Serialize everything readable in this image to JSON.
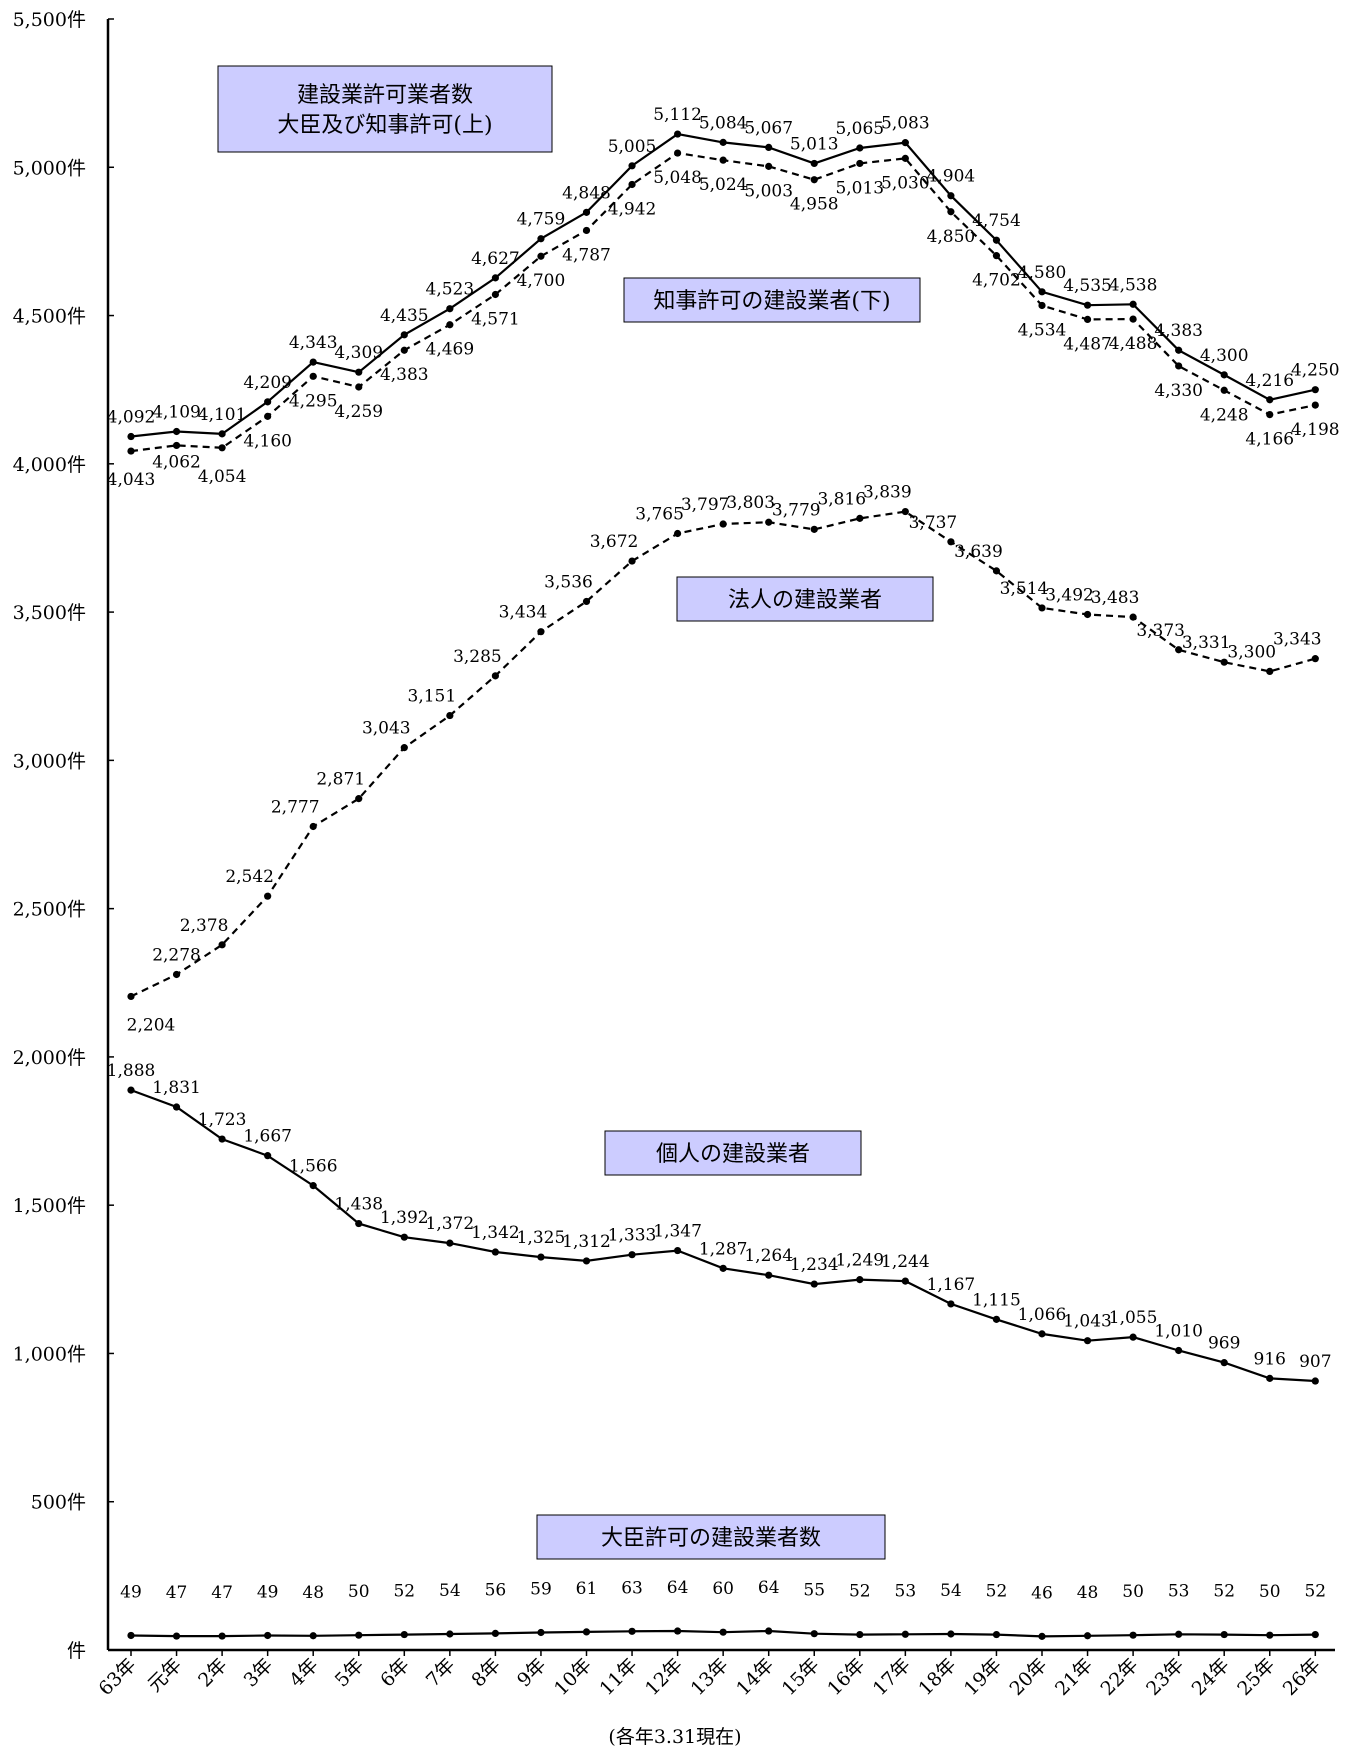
{
  "chart_data": {
    "type": "line",
    "categories": [
      "63年",
      "元年",
      "2年",
      "3年",
      "4年",
      "5年",
      "6年",
      "7年",
      "8年",
      "9年",
      "10年",
      "11年",
      "12年",
      "13年",
      "14年",
      "15年",
      "16年",
      "17年",
      "18年",
      "19年",
      "20年",
      "21年",
      "22年",
      "23年",
      "24年",
      "25年",
      "26年"
    ],
    "y_ticks": [
      {
        "value": 5500,
        "label": "5,500件"
      },
      {
        "value": 5000,
        "label": "5,000件"
      },
      {
        "value": 4500,
        "label": "4,500件"
      },
      {
        "value": 4000,
        "label": "4,000件"
      },
      {
        "value": 3500,
        "label": "3,500件"
      },
      {
        "value": 3000,
        "label": "3,000件"
      },
      {
        "value": 2500,
        "label": "2,500件"
      },
      {
        "value": 2000,
        "label": "2,000件"
      },
      {
        "value": 1500,
        "label": "1,500件"
      },
      {
        "value": 1000,
        "label": "1,000件"
      },
      {
        "value": 500,
        "label": "500件"
      },
      {
        "value": 0,
        "label": "件"
      }
    ],
    "ylim": [
      0,
      5500
    ],
    "grid": false,
    "series": [
      {
        "key": "total",
        "values": [
          4092,
          4109,
          4101,
          4209,
          4343,
          4309,
          4435,
          4523,
          4627,
          4759,
          4848,
          5005,
          5112,
          5084,
          5067,
          5013,
          5065,
          5083,
          4904,
          4754,
          4580,
          4535,
          4538,
          4383,
          4300,
          4216,
          4250
        ],
        "style": "solid"
      },
      {
        "key": "governor",
        "values": [
          4043,
          4062,
          4054,
          4160,
          4295,
          4259,
          4383,
          4469,
          4571,
          4700,
          4787,
          4942,
          5048,
          5024,
          5003,
          4958,
          5013,
          5030,
          4850,
          4702,
          4534,
          4487,
          4488,
          4330,
          4248,
          4166,
          4198
        ],
        "style": "dashed"
      },
      {
        "key": "corporate",
        "values": [
          2204,
          2278,
          2378,
          2542,
          2777,
          2871,
          3043,
          3151,
          3285,
          3434,
          3536,
          3672,
          3765,
          3797,
          3803,
          3779,
          3816,
          3839,
          3737,
          3639,
          3514,
          3492,
          3483,
          3373,
          3331,
          3300,
          3343
        ],
        "style": "dashed"
      },
      {
        "key": "individual",
        "values": [
          1888,
          1831,
          1723,
          1667,
          1566,
          1438,
          1392,
          1372,
          1342,
          1325,
          1312,
          1333,
          1347,
          1287,
          1264,
          1234,
          1249,
          1244,
          1167,
          1115,
          1066,
          1043,
          1055,
          1010,
          969,
          916,
          907
        ],
        "style": "solid"
      },
      {
        "key": "minister",
        "values": [
          49,
          47,
          47,
          49,
          48,
          50,
          52,
          54,
          56,
          59,
          61,
          63,
          64,
          60,
          64,
          55,
          52,
          53,
          54,
          52,
          46,
          48,
          50,
          53,
          52,
          50,
          52
        ],
        "style": "solid"
      }
    ],
    "annotations": {
      "total_label_line1": "建設業許可業者数",
      "total_label_line2": "大臣及び知事許可(上)",
      "governor_label": "知事許可の建設業者(下)",
      "corporate_label": "法人の建設業者",
      "individual_label": "個人の建設業者",
      "minister_label": "大臣許可の建設業者数"
    },
    "colors": {
      "line": "#000000",
      "label_box_fill": "#ccccff",
      "label_box_border": "#000000"
    }
  },
  "footnote": "(各年3.31現在)"
}
